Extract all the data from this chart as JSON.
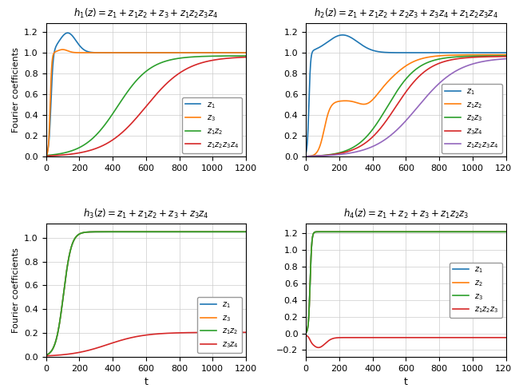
{
  "titles": [
    "$h_1(z) = z_1 + z_1z_2 + z_3 + z_1z_2z_3z_4$",
    "$h_2(z) = z_1 + z_1z_2 + z_2z_3 + z_3z_4 + z_1z_2z_3z_4$",
    "$h_3(z) = z_1 + z_1z_2 + z_3 + z_3z_4$",
    "$h_4(z) = z_1 + z_2 + z_3 + z_1z_2z_3$"
  ],
  "xlim": [
    0,
    1200
  ],
  "xlabel": "t",
  "ylabel": "Fourier coefficients",
  "colors": {
    "blue": "#1f77b4",
    "orange": "#ff7f0e",
    "green": "#2ca02c",
    "red": "#d62728",
    "purple": "#9467bd"
  }
}
